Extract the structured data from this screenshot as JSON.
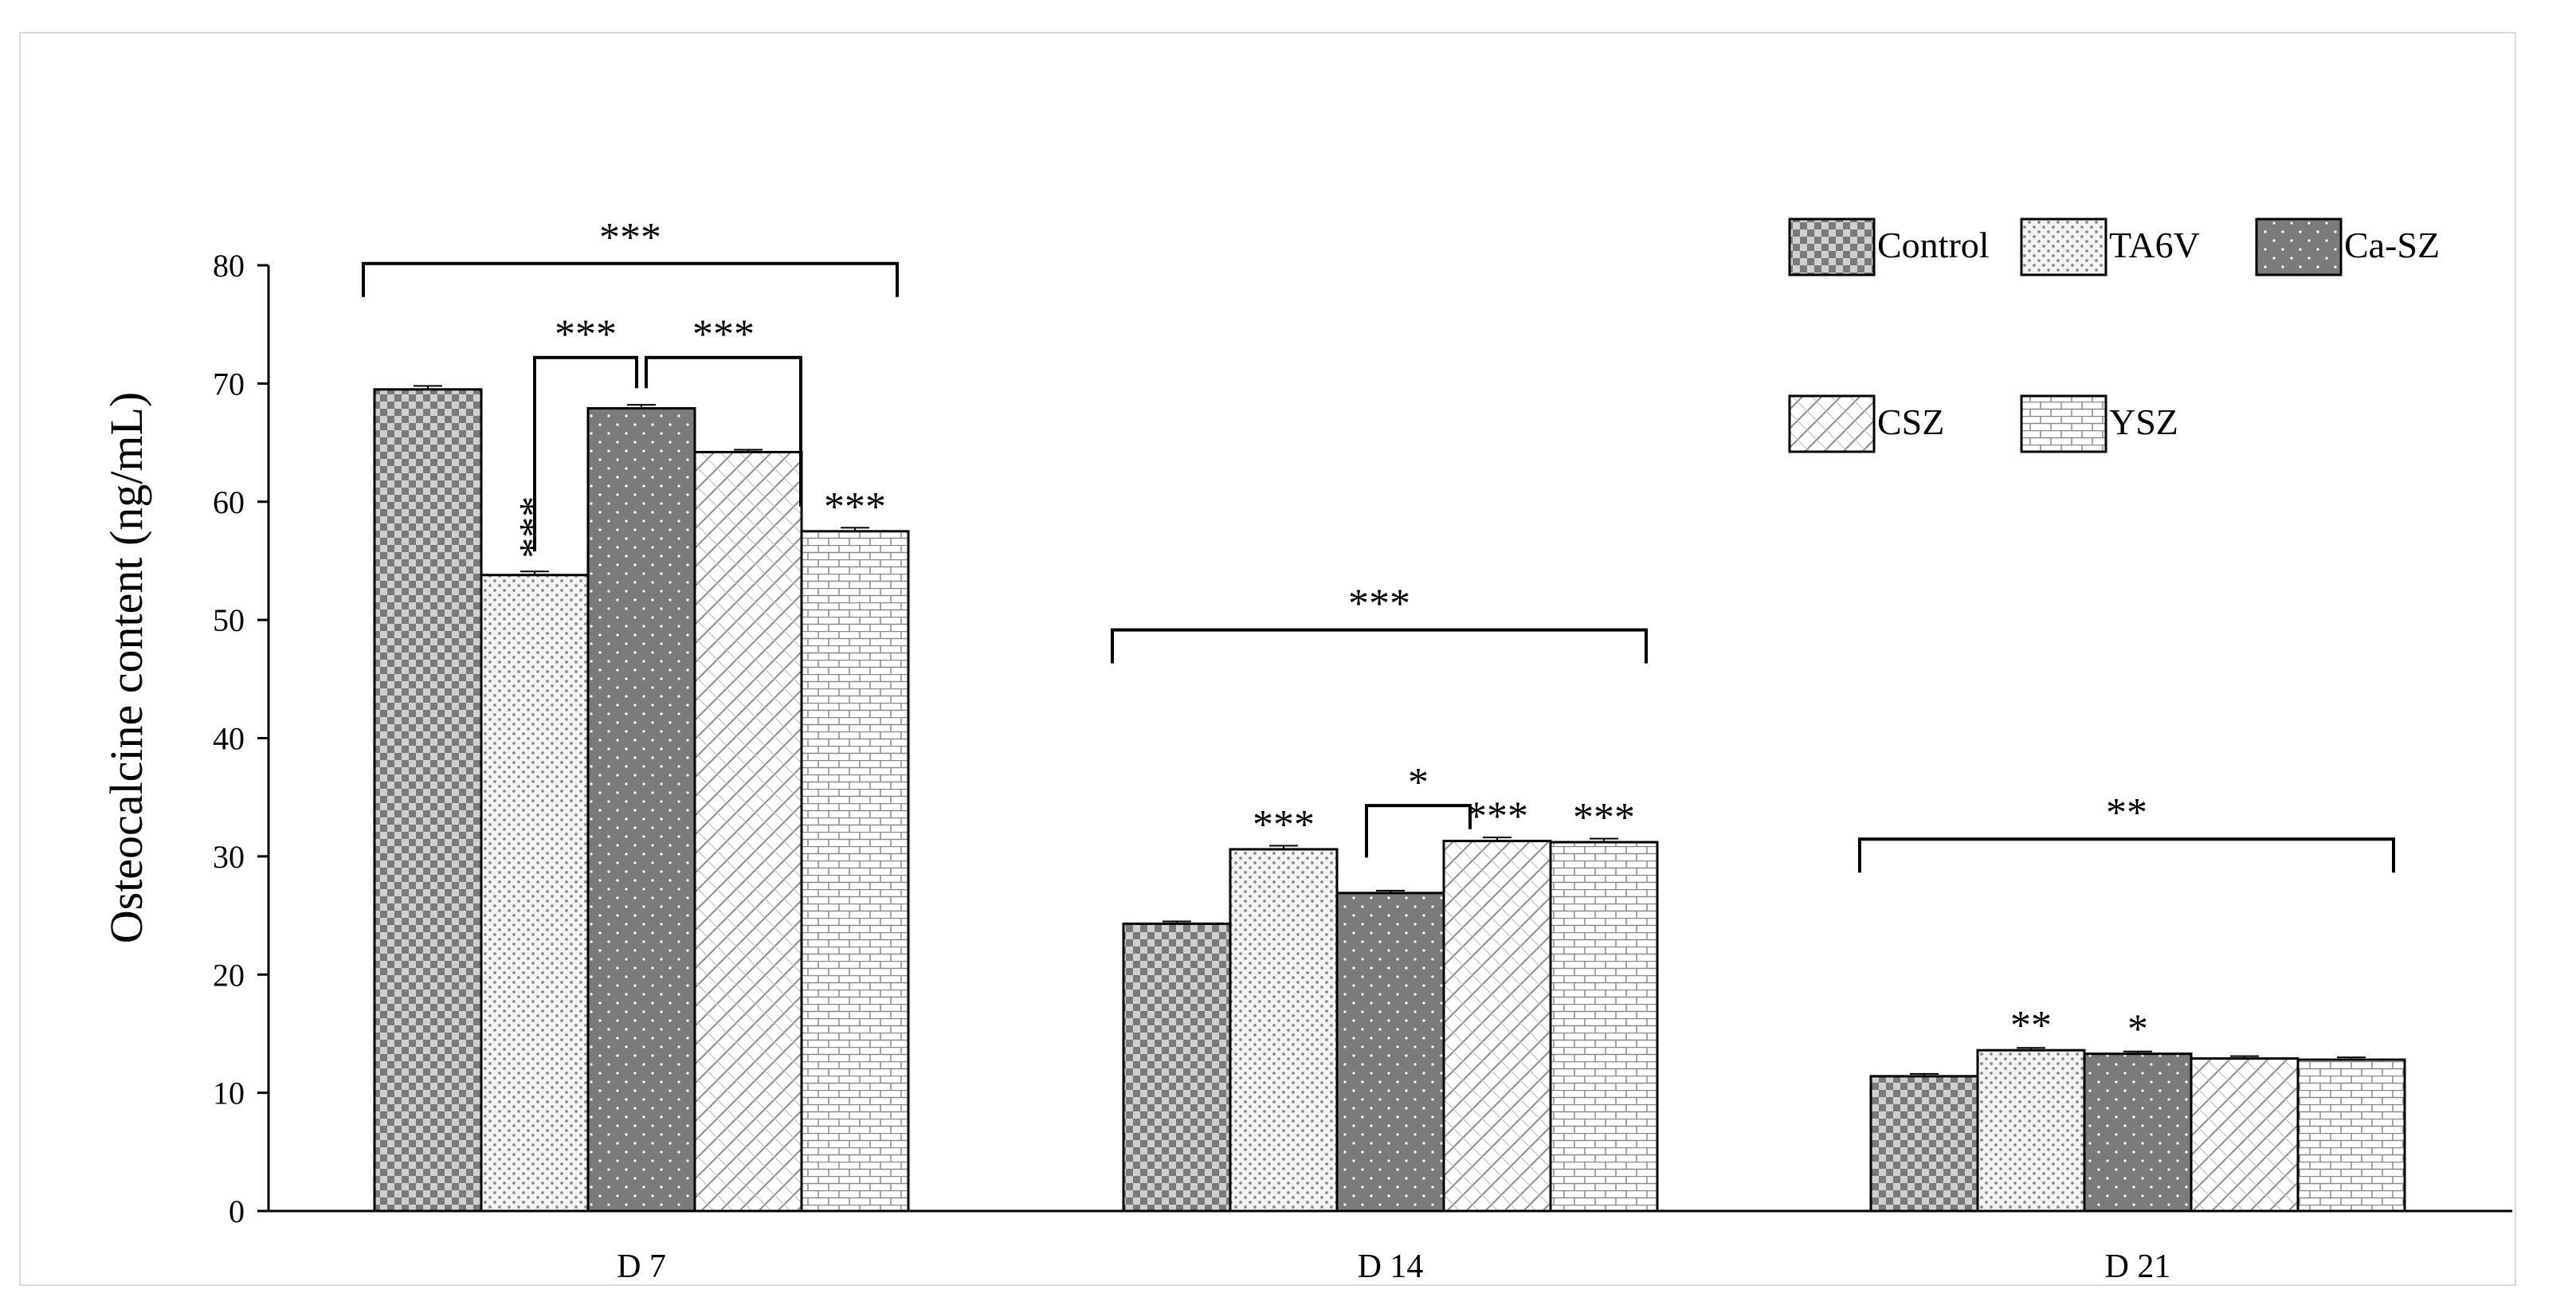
{
  "chart_data": {
    "type": "bar",
    "title": "",
    "xlabel": "",
    "ylabel": "Osteocalcine content (ng/mL)",
    "ylim": [
      0,
      80
    ],
    "yticks": [
      "0",
      "10",
      "20",
      "30",
      "40",
      "50",
      "60",
      "70",
      "80"
    ],
    "categories": [
      "D 7",
      "D 14",
      "D 21"
    ],
    "legend_position": "top-right",
    "series": [
      {
        "name": "Control",
        "pattern": "checker",
        "values": [
          69.5,
          24.3,
          11.4
        ],
        "errors": [
          0.3,
          0.2,
          0.2
        ]
      },
      {
        "name": "TA6V",
        "pattern": "stipple",
        "values": [
          53.8,
          30.6,
          13.6
        ],
        "errors": [
          0.3,
          0.3,
          0.2
        ]
      },
      {
        "name": "Ca-SZ",
        "pattern": "dark-dots",
        "values": [
          67.9,
          26.9,
          13.3
        ],
        "errors": [
          0.3,
          0.2,
          0.2
        ]
      },
      {
        "name": "CSZ",
        "pattern": "diagonal-hatch",
        "values": [
          64.2,
          31.3,
          12.9
        ],
        "errors": [
          0.2,
          0.3,
          0.2
        ]
      },
      {
        "name": "YSZ",
        "pattern": "brick",
        "values": [
          57.5,
          31.2,
          12.8
        ],
        "errors": [
          0.3,
          0.3,
          0.2
        ]
      }
    ],
    "bar_annotations": [
      {
        "category": 0,
        "series": 1,
        "text": "***",
        "vertical": true
      },
      {
        "category": 0,
        "series": 4,
        "text": "***"
      },
      {
        "category": 1,
        "series": 1,
        "text": "***"
      },
      {
        "category": 1,
        "series": 3,
        "text": "***"
      },
      {
        "category": 1,
        "series": 4,
        "text": "***"
      },
      {
        "category": 2,
        "series": 1,
        "text": "**"
      },
      {
        "category": 2,
        "series": 2,
        "text": "*"
      }
    ],
    "group_brackets": [
      {
        "category": 0,
        "text": "***"
      },
      {
        "category": 1,
        "text": "***"
      },
      {
        "category": 2,
        "text": "**"
      }
    ],
    "pair_brackets": [
      {
        "category": 0,
        "from_series": 1,
        "to_series": 2,
        "text": "***"
      },
      {
        "category": 0,
        "from_series": 2,
        "to_series": 4,
        "text": "***"
      },
      {
        "category": 1,
        "from_series": 2,
        "to_series": 3,
        "text": "*"
      }
    ]
  }
}
